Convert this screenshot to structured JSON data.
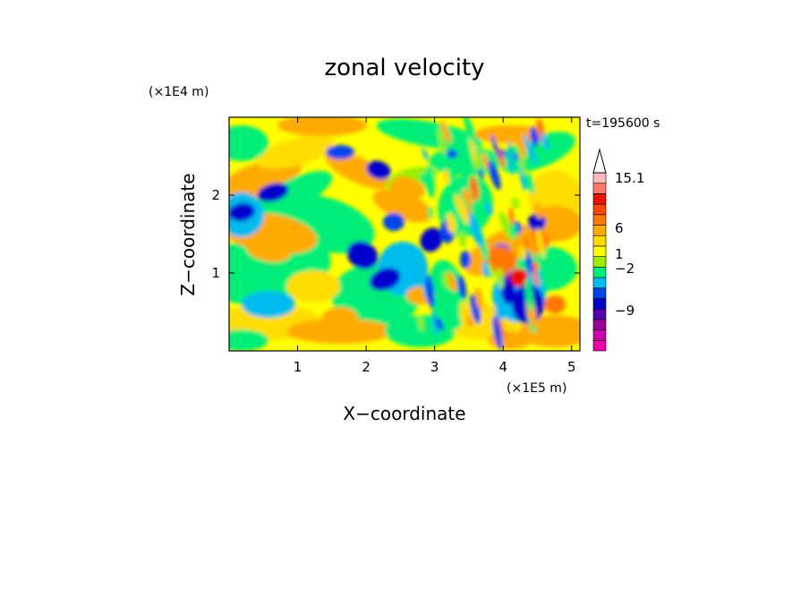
{
  "chart_data": {
    "type": "heatmap",
    "title": "zonal velocity",
    "xlabel": "X−coordinate",
    "ylabel": "Z−coordinate",
    "x_multiplier": "(×1E5 m)",
    "y_multiplier": "(×1E4 m)",
    "time_label": "t=195600 s",
    "xlim": [
      0,
      5.12
    ],
    "ylim": [
      0,
      3.0
    ],
    "xticks": [
      1,
      2,
      3,
      4,
      5
    ],
    "xtick_labels": [
      "1",
      "2",
      "3",
      "4",
      "5"
    ],
    "yticks": [
      1,
      2
    ],
    "ytick_labels": [
      "1",
      "2"
    ],
    "colorbar": {
      "colors": [
        "#ee00aa",
        "#cc00aa",
        "#990099",
        "#5500aa",
        "#0000cc",
        "#0044ee",
        "#00bbee",
        "#00ee77",
        "#99ee00",
        "#ffff00",
        "#ffdd00",
        "#ffaa00",
        "#ff7700",
        "#ff4400",
        "#ee1100",
        "#ff7766",
        "#ffbbbb"
      ],
      "tick_labels": [
        "15.1",
        "6",
        "1",
        "−2",
        "−9"
      ],
      "tick_levels": [
        15.1,
        6,
        1,
        -2,
        -9
      ]
    }
  }
}
